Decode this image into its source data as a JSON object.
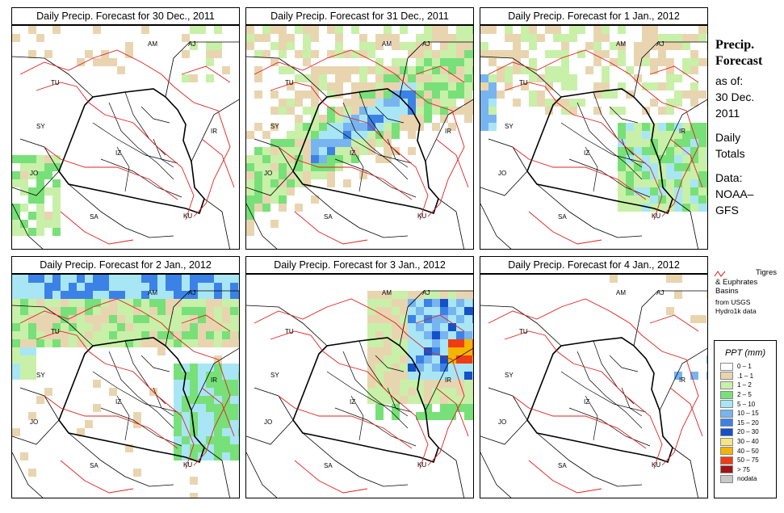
{
  "panels": [
    {
      "title": "Daily Precip. Forecast for  30 Dec., 2011"
    },
    {
      "title": "Daily Precip. Forecast for  31 Dec., 2011"
    },
    {
      "title": "Daily Precip. Forecast for  1 Jan., 2012"
    },
    {
      "title": "Daily Precip. Forecast for  2 Jan., 2012"
    },
    {
      "title": "Daily Precip. Forecast for  3 Jan., 2012"
    },
    {
      "title": "Daily Precip. Forecast for  4 Jan., 2012"
    }
  ],
  "country_labels": [
    "AM",
    "AJ",
    "TU",
    "SY",
    "IR",
    "JO",
    "SA",
    "KU",
    "IZ"
  ],
  "side_info": {
    "heading_1": "Precip.",
    "heading_2": "Forecast",
    "asof_1": "as of:",
    "asof_2": "30 Dec.",
    "asof_3": "2011",
    "daily_1": "Daily",
    "daily_2": "Totals",
    "data_1": "Data:",
    "data_2": "NOAA–",
    "data_3": "GFS"
  },
  "basin_note": {
    "line_1": "Tigres",
    "line_2": "& Euphrates",
    "line_3": "Basins",
    "line_4": "from USGS",
    "line_5": "Hydro1k data",
    "color": "#e02020"
  },
  "legend": {
    "title": "PPT (mm)",
    "items": [
      {
        "label": "0 – 1",
        "color": "#ffffff"
      },
      {
        "label": ".1 – 1",
        "color": "#e8d5b0"
      },
      {
        "label": "1 – 2",
        "color": "#c8f0a8"
      },
      {
        "label": "2 – 5",
        "color": "#78e078"
      },
      {
        "label": "5 – 10",
        "color": "#a8e6f5"
      },
      {
        "label": "10 – 15",
        "color": "#78b4f0"
      },
      {
        "label": "15 – 20",
        "color": "#3c82e6"
      },
      {
        "label": "20 – 30",
        "color": "#1450c8"
      },
      {
        "label": "30 – 40",
        "color": "#f5e682"
      },
      {
        "label": "40 – 50",
        "color": "#f5b400"
      },
      {
        "label": "50 – 75",
        "color": "#f03c14"
      },
      {
        "label": "> 75",
        "color": "#a01414"
      },
      {
        "label": "nodata",
        "color": "#c8c8c8"
      }
    ]
  }
}
